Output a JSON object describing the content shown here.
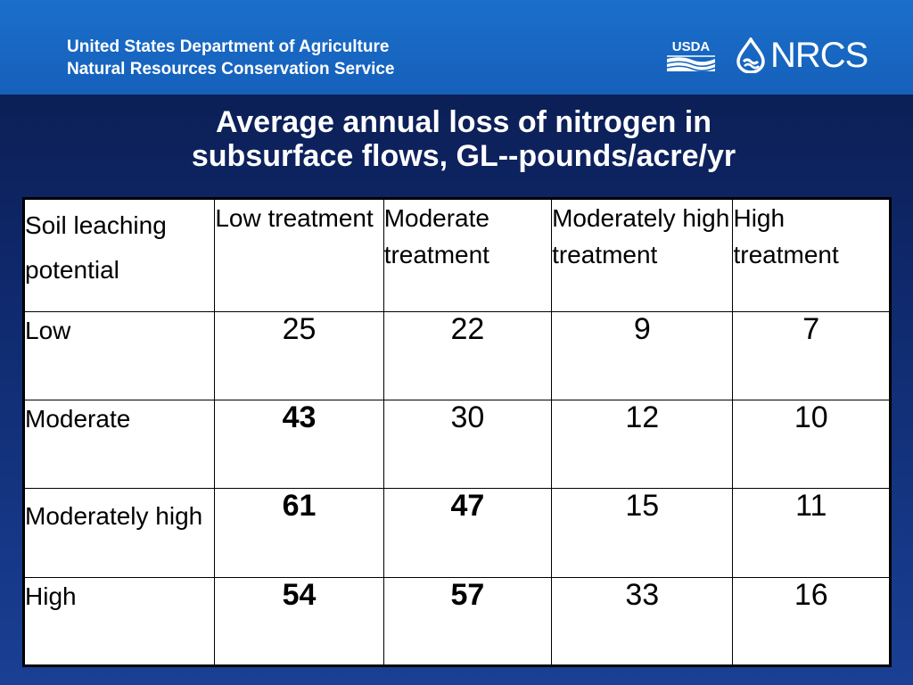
{
  "header": {
    "agency_line1": "United States Department of Agriculture",
    "agency_line2": "Natural Resources Conservation Service",
    "usda_logo_text": "USDA",
    "nrcs_logo_text": "NRCS",
    "background_color": "#1565c0"
  },
  "title": {
    "line1": "Average annual loss of nitrogen in",
    "line2": "subsurface flows, GL--pounds/acre/yr"
  },
  "table": {
    "columns": [
      "Soil leaching potential",
      "Low treatment",
      "Moderate treatment",
      "Moderately high treatment",
      "High treatment"
    ],
    "rows": [
      {
        "label": "Low",
        "values": [
          "25",
          "22",
          "9",
          "7"
        ],
        "bold": [
          false,
          false,
          false,
          false
        ]
      },
      {
        "label": "Moderate",
        "values": [
          "43",
          "30",
          "12",
          "10"
        ],
        "bold": [
          true,
          false,
          false,
          false
        ]
      },
      {
        "label": "Moderately high",
        "values": [
          "61",
          "47",
          "15",
          "11"
        ],
        "bold": [
          true,
          true,
          false,
          false
        ]
      },
      {
        "label": "High",
        "values": [
          "54",
          "57",
          "33",
          "16"
        ],
        "bold": [
          true,
          true,
          false,
          false
        ]
      }
    ]
  },
  "chart_data": {
    "type": "table",
    "title": "Average annual loss of nitrogen in subsurface flows, GL--pounds/acre/yr",
    "columns": [
      "Soil leaching potential",
      "Low treatment",
      "Moderate treatment",
      "Moderately high treatment",
      "High treatment"
    ],
    "rows": [
      [
        "Low",
        25,
        22,
        9,
        7
      ],
      [
        "Moderate",
        43,
        30,
        12,
        10
      ],
      [
        "Moderately high",
        61,
        47,
        15,
        11
      ],
      [
        "High",
        54,
        57,
        33,
        16
      ]
    ]
  }
}
